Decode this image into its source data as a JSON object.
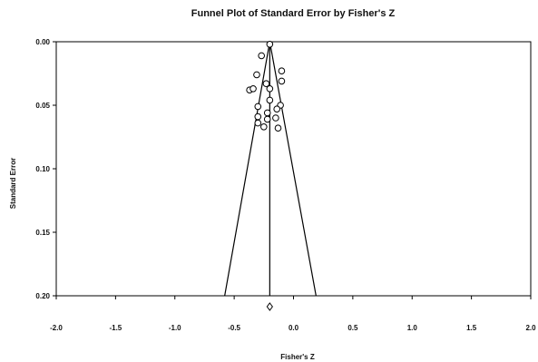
{
  "chart_data": {
    "type": "scatter",
    "title": "Funnel Plot of Standard Error by Fisher's Z",
    "xlabel": "Fisher's Z",
    "ylabel": "Standard Error",
    "xlim": [
      -2.0,
      2.0
    ],
    "ylim": [
      0.0,
      0.2
    ],
    "y_reversed": true,
    "xticks": [
      "-2.0",
      "-1.5",
      "-1.0",
      "-0.5",
      "0.0",
      "0.5",
      "1.0",
      "1.5",
      "2.0"
    ],
    "yticks": [
      "0.00",
      "0.05",
      "0.10",
      "0.15",
      "0.20"
    ],
    "grid": false,
    "pooled_estimate": -0.2,
    "funnel_limits": {
      "apex_se": 0.0,
      "base_se": 0.2,
      "base_left": -0.58,
      "base_right": 0.19
    },
    "summary_diamond": {
      "x": -0.2
    },
    "points": [
      {
        "x": -0.2,
        "y": 0.002
      },
      {
        "x": -0.27,
        "y": 0.011
      },
      {
        "x": -0.1,
        "y": 0.023
      },
      {
        "x": -0.31,
        "y": 0.026
      },
      {
        "x": -0.1,
        "y": 0.031
      },
      {
        "x": -0.23,
        "y": 0.033
      },
      {
        "x": -0.37,
        "y": 0.038
      },
      {
        "x": -0.34,
        "y": 0.037
      },
      {
        "x": -0.2,
        "y": 0.037
      },
      {
        "x": -0.2,
        "y": 0.046
      },
      {
        "x": -0.3,
        "y": 0.051
      },
      {
        "x": -0.11,
        "y": 0.05
      },
      {
        "x": -0.14,
        "y": 0.053
      },
      {
        "x": -0.22,
        "y": 0.056
      },
      {
        "x": -0.3,
        "y": 0.059
      },
      {
        "x": -0.22,
        "y": 0.061
      },
      {
        "x": -0.15,
        "y": 0.06
      },
      {
        "x": -0.3,
        "y": 0.064
      },
      {
        "x": -0.25,
        "y": 0.067
      },
      {
        "x": -0.13,
        "y": 0.068
      }
    ]
  }
}
